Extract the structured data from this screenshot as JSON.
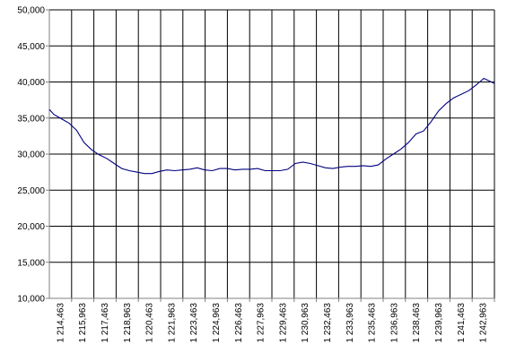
{
  "chart_data": {
    "type": "line",
    "title": "",
    "xlabel": "",
    "ylabel": "",
    "ylim": [
      10000,
      50000
    ],
    "y_ticks": [
      "10,000",
      "15,000",
      "20,000",
      "25,000",
      "30,000",
      "35,000",
      "40,000",
      "45,000",
      "50,000"
    ],
    "y_tick_values": [
      10000,
      15000,
      20000,
      25000,
      30000,
      35000,
      40000,
      45000,
      50000
    ],
    "x_ticks": [
      "1 214,463",
      "1 215,963",
      "1 217,463",
      "1 218,963",
      "1 220,463",
      "1 221,963",
      "1 223,463",
      "1 224,963",
      "1 226,463",
      "1 227,963",
      "1 229,463",
      "1 230,963",
      "1 232,463",
      "1 233,963",
      "1 235,463",
      "1 236,963",
      "1 238,463",
      "1 239,963",
      "1 241,463",
      "1 242,963"
    ],
    "xlim": [
      1213.7,
      1243.2
    ],
    "grid": true,
    "legend": "none",
    "series": [
      {
        "color": "#000080",
        "x": [
          1213.7,
          1214.0,
          1214.5,
          1215.0,
          1215.5,
          1216.0,
          1216.5,
          1217.0,
          1217.5,
          1218.0,
          1218.5,
          1219.0,
          1219.5,
          1220.0,
          1220.5,
          1221.0,
          1221.5,
          1222.0,
          1222.5,
          1223.0,
          1223.5,
          1224.0,
          1224.5,
          1225.0,
          1225.5,
          1226.0,
          1226.5,
          1227.0,
          1227.5,
          1228.0,
          1228.5,
          1229.0,
          1229.5,
          1230.0,
          1230.5,
          1231.0,
          1231.5,
          1232.0,
          1232.5,
          1233.0,
          1233.5,
          1234.0,
          1234.5,
          1235.0,
          1235.5,
          1236.0,
          1236.5,
          1237.0,
          1237.5,
          1238.0,
          1238.5,
          1239.0,
          1239.5,
          1240.0,
          1240.5,
          1241.0,
          1241.5,
          1242.0,
          1242.5,
          1243.0,
          1243.2
        ],
        "y": [
          36200,
          35500,
          34900,
          34300,
          33300,
          31600,
          30600,
          29900,
          29400,
          28700,
          28000,
          27700,
          27500,
          27300,
          27300,
          27600,
          27800,
          27700,
          27800,
          27900,
          28100,
          27800,
          27700,
          28000,
          28000,
          27800,
          27900,
          27900,
          28000,
          27700,
          27700,
          27700,
          27900,
          28700,
          28900,
          28700,
          28400,
          28100,
          28000,
          28200,
          28300,
          28300,
          28400,
          28300,
          28500,
          29300,
          30000,
          30700,
          31600,
          32800,
          33200,
          34500,
          36000,
          37000,
          37800,
          38300,
          38800,
          39600,
          40500,
          40000,
          39800
        ]
      }
    ]
  }
}
